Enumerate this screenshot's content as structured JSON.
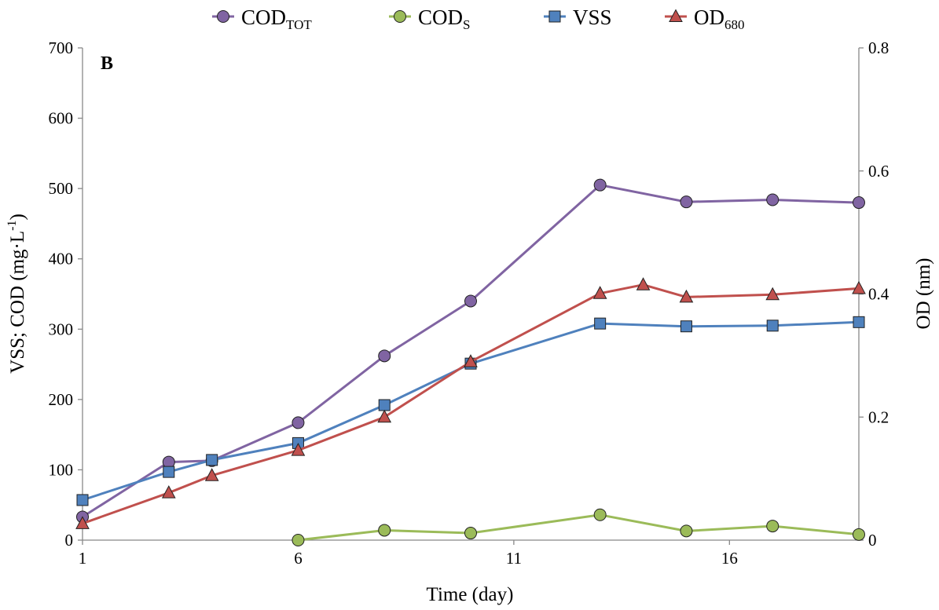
{
  "chart_data": {
    "type": "line",
    "panel_label": "B",
    "xlabel": "Time (day)",
    "ylabel": "VSS; COD (mg·L",
    "ylabel_sup": "-1",
    "ylabel_close": ")",
    "y2label": "OD (nm)",
    "xlim": [
      1,
      19
    ],
    "ylim": [
      0,
      700
    ],
    "y2lim": [
      0,
      0.8
    ],
    "x_ticks": [
      1,
      6,
      11,
      16
    ],
    "y_ticks": [
      0,
      100,
      200,
      300,
      400,
      500,
      600,
      700
    ],
    "y2_ticks": [
      0,
      0.2,
      0.4,
      0.6,
      0.8
    ],
    "y2_tick_labels": [
      "0",
      "0.2",
      "0.4",
      "0.6",
      "0.8"
    ],
    "grid": false,
    "legend_position": "top",
    "series": [
      {
        "key": "cod_tot",
        "name": "COD",
        "name_sub": "TOT",
        "axis": "left",
        "marker": "circle",
        "line_color": "#8064a2",
        "marker_color": "#8064a2",
        "x": [
          1,
          3,
          4,
          6,
          8,
          10,
          13,
          15,
          17,
          19
        ],
        "y": [
          33,
          111,
          113,
          167,
          262,
          340,
          505,
          481,
          484,
          480
        ]
      },
      {
        "key": "cod_s",
        "name": "COD",
        "name_sub": "S",
        "axis": "left",
        "marker": "circle",
        "line_color": "#9bbb59",
        "marker_color": "#9bbb59",
        "x": [
          6,
          8,
          10,
          13,
          15,
          17,
          19
        ],
        "y": [
          0,
          14,
          10,
          36,
          13,
          20,
          8
        ]
      },
      {
        "key": "vss",
        "name": "VSS",
        "name_sub": "",
        "axis": "left",
        "marker": "square",
        "line_color": "#4f81bd",
        "marker_color": "#4f81bd",
        "x": [
          1,
          3,
          4,
          6,
          8,
          10,
          13,
          15,
          17,
          19
        ],
        "y": [
          57,
          97,
          114,
          138,
          192,
          251,
          308,
          304,
          305,
          310
        ]
      },
      {
        "key": "od680",
        "name": "OD",
        "name_sub": "680",
        "axis": "right",
        "marker": "triangle",
        "line_color": "#c0504d",
        "marker_color": "#c0504d",
        "x": [
          1,
          3,
          4,
          6,
          8,
          10,
          13,
          14,
          15,
          17,
          19
        ],
        "y": [
          0.027,
          0.077,
          0.105,
          0.146,
          0.2,
          0.29,
          0.401,
          0.415,
          0.395,
          0.399,
          0.409
        ]
      }
    ]
  }
}
